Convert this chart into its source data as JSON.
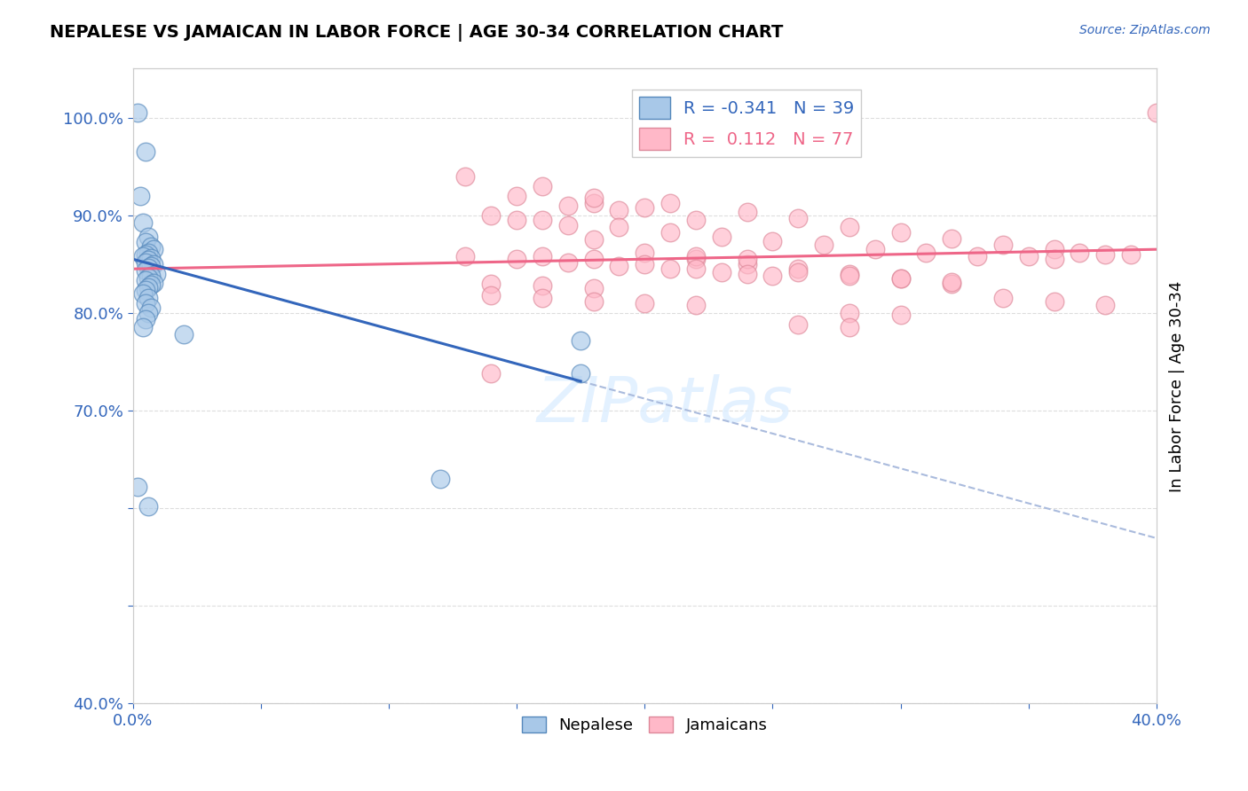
{
  "title": "NEPALESE VS JAMAICAN IN LABOR FORCE | AGE 30-34 CORRELATION CHART",
  "source_text": "Source: ZipAtlas.com",
  "ylabel": "In Labor Force | Age 30-34",
  "xlim": [
    0.0,
    0.4
  ],
  "ylim": [
    0.4,
    1.05
  ],
  "xticks": [
    0.0,
    0.05,
    0.1,
    0.15,
    0.2,
    0.25,
    0.3,
    0.35,
    0.4
  ],
  "yticks": [
    0.4,
    0.5,
    0.6,
    0.7,
    0.8,
    0.9,
    1.0
  ],
  "legend_R_blue": "-0.341",
  "legend_N_blue": "39",
  "legend_R_pink": " 0.112",
  "legend_N_pink": "77",
  "blue_color": "#A8C8E8",
  "blue_edge_color": "#5588BB",
  "pink_color": "#FFB8C8",
  "pink_edge_color": "#DD8899",
  "blue_line_color": "#3366BB",
  "pink_line_color": "#EE6688",
  "dash_line_color": "#AABBDD",
  "watermark_text": "ZIPatlas",
  "blue_scatter_x": [
    0.002,
    0.005,
    0.003,
    0.004,
    0.006,
    0.005,
    0.007,
    0.008,
    0.006,
    0.005,
    0.004,
    0.007,
    0.006,
    0.005,
    0.008,
    0.007,
    0.006,
    0.005,
    0.009,
    0.007,
    0.006,
    0.005,
    0.008,
    0.007,
    0.006,
    0.005,
    0.004,
    0.006,
    0.005,
    0.007,
    0.006,
    0.005,
    0.004,
    0.175,
    0.175,
    0.02,
    0.002,
    0.006,
    0.12
  ],
  "blue_scatter_y": [
    1.005,
    0.965,
    0.92,
    0.892,
    0.878,
    0.872,
    0.868,
    0.865,
    0.862,
    0.86,
    0.858,
    0.856,
    0.854,
    0.852,
    0.85,
    0.848,
    0.846,
    0.843,
    0.84,
    0.838,
    0.836,
    0.833,
    0.831,
    0.829,
    0.826,
    0.823,
    0.82,
    0.815,
    0.81,
    0.805,
    0.8,
    0.793,
    0.785,
    0.772,
    0.738,
    0.778,
    0.622,
    0.602,
    0.63
  ],
  "pink_scatter_x": [
    0.13,
    0.15,
    0.17,
    0.16,
    0.18,
    0.14,
    0.19,
    0.21,
    0.16,
    0.18,
    0.2,
    0.22,
    0.24,
    0.26,
    0.28,
    0.3,
    0.32,
    0.34,
    0.36,
    0.38,
    0.15,
    0.17,
    0.19,
    0.21,
    0.23,
    0.25,
    0.27,
    0.29,
    0.31,
    0.33,
    0.13,
    0.15,
    0.17,
    0.19,
    0.21,
    0.23,
    0.25,
    0.22,
    0.24,
    0.26,
    0.28,
    0.3,
    0.18,
    0.2,
    0.22,
    0.24,
    0.26,
    0.28,
    0.3,
    0.32,
    0.16,
    0.18,
    0.2,
    0.22,
    0.24,
    0.14,
    0.16,
    0.18,
    0.35,
    0.37,
    0.39,
    0.32,
    0.36,
    0.14,
    0.16,
    0.18,
    0.2,
    0.22,
    0.28,
    0.3,
    0.34,
    0.36,
    0.38,
    0.4,
    0.26,
    0.28,
    0.14
  ],
  "pink_scatter_y": [
    0.94,
    0.92,
    0.91,
    0.93,
    0.912,
    0.9,
    0.905,
    0.912,
    0.895,
    0.918,
    0.908,
    0.895,
    0.903,
    0.897,
    0.888,
    0.882,
    0.876,
    0.87,
    0.865,
    0.86,
    0.895,
    0.89,
    0.888,
    0.882,
    0.878,
    0.873,
    0.87,
    0.865,
    0.862,
    0.858,
    0.858,
    0.855,
    0.852,
    0.848,
    0.845,
    0.842,
    0.838,
    0.855,
    0.85,
    0.845,
    0.84,
    0.835,
    0.875,
    0.862,
    0.858,
    0.855,
    0.842,
    0.838,
    0.835,
    0.83,
    0.858,
    0.855,
    0.85,
    0.845,
    0.84,
    0.83,
    0.828,
    0.825,
    0.858,
    0.862,
    0.86,
    0.832,
    0.855,
    0.818,
    0.815,
    0.812,
    0.81,
    0.808,
    0.8,
    0.798,
    0.815,
    0.812,
    0.808,
    1.005,
    0.788,
    0.785,
    0.738
  ]
}
